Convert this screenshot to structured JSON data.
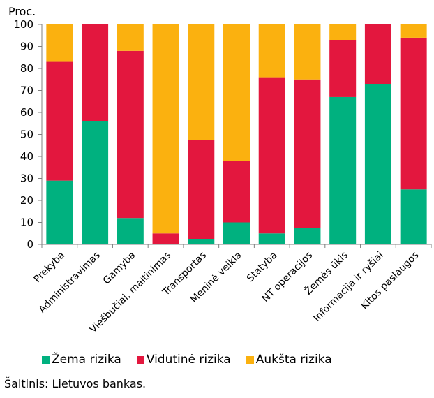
{
  "chart_data": {
    "type": "bar",
    "stacked": true,
    "ylabel": "Proc.",
    "ylim": [
      0,
      100
    ],
    "yticks": [
      0,
      10,
      20,
      30,
      40,
      50,
      60,
      70,
      80,
      90,
      100
    ],
    "grid": false,
    "categories": [
      "Prekyba",
      "Administravimas",
      "Gamyba",
      "Viešbučiai, maitinimas",
      "Transportas",
      "Meninė veikla",
      "Statyba",
      "NT operacijos",
      "Žemės ūkis",
      "Informacija ir ryšiai",
      "Kitos paslaugos"
    ],
    "series": [
      {
        "name": "Žema rizika",
        "color": "#00b17f",
        "values": [
          29,
          56,
          12,
          0,
          2.5,
          10,
          5,
          7.5,
          67,
          73,
          25
        ]
      },
      {
        "name": "Vidutinė rizika",
        "color": "#e3173e",
        "values": [
          54,
          44,
          76,
          5,
          45,
          28,
          71,
          67.5,
          26,
          27,
          69
        ]
      },
      {
        "name": "Aukšta rizika",
        "color": "#fbb10f",
        "values": [
          17,
          0,
          12,
          95,
          52.5,
          62,
          24,
          25,
          7,
          0,
          6
        ]
      }
    ],
    "legend_position": "bottom"
  },
  "source": "Šaltinis: Lietuvos bankas."
}
